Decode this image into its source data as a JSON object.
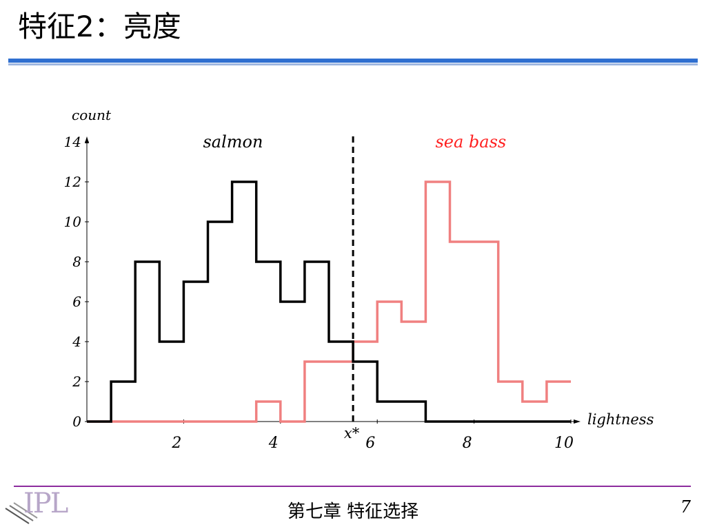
{
  "slide": {
    "title": "特征2：亮度",
    "footer": "第七章  特征选择",
    "page_number": "7",
    "logo_text": "IPL"
  },
  "chart_data": {
    "type": "line",
    "xlabel": "lightness",
    "ylabel": "count",
    "xlim": [
      0,
      10
    ],
    "ylim": [
      0,
      14
    ],
    "x_ticks": [
      "2",
      "4",
      "6",
      "8",
      "10"
    ],
    "y_ticks": [
      "0",
      "2",
      "4",
      "6",
      "8",
      "10",
      "12",
      "14"
    ],
    "threshold": {
      "label": "x*",
      "x": 5.5
    },
    "series": [
      {
        "name": "salmon",
        "color": "#000000",
        "bin_edges": [
          0,
          0.5,
          1.0,
          1.5,
          2.0,
          2.5,
          3.0,
          3.5,
          4.0,
          4.5,
          5.0,
          5.5,
          6.0,
          6.5,
          7.0,
          10.0
        ],
        "counts": [
          0,
          2,
          8,
          4,
          7,
          10,
          12,
          8,
          6,
          8,
          4,
          3,
          1,
          1,
          0
        ]
      },
      {
        "name": "sea bass",
        "color": "#f08080",
        "bin_edges": [
          0,
          3.5,
          4.0,
          4.5,
          5.5,
          6.0,
          6.5,
          7.0,
          7.5,
          8.0,
          8.5,
          9.0,
          9.5,
          10.0
        ],
        "counts": [
          0,
          1,
          0,
          3,
          4,
          6,
          5,
          12,
          9,
          9,
          2,
          1,
          2
        ]
      }
    ]
  }
}
